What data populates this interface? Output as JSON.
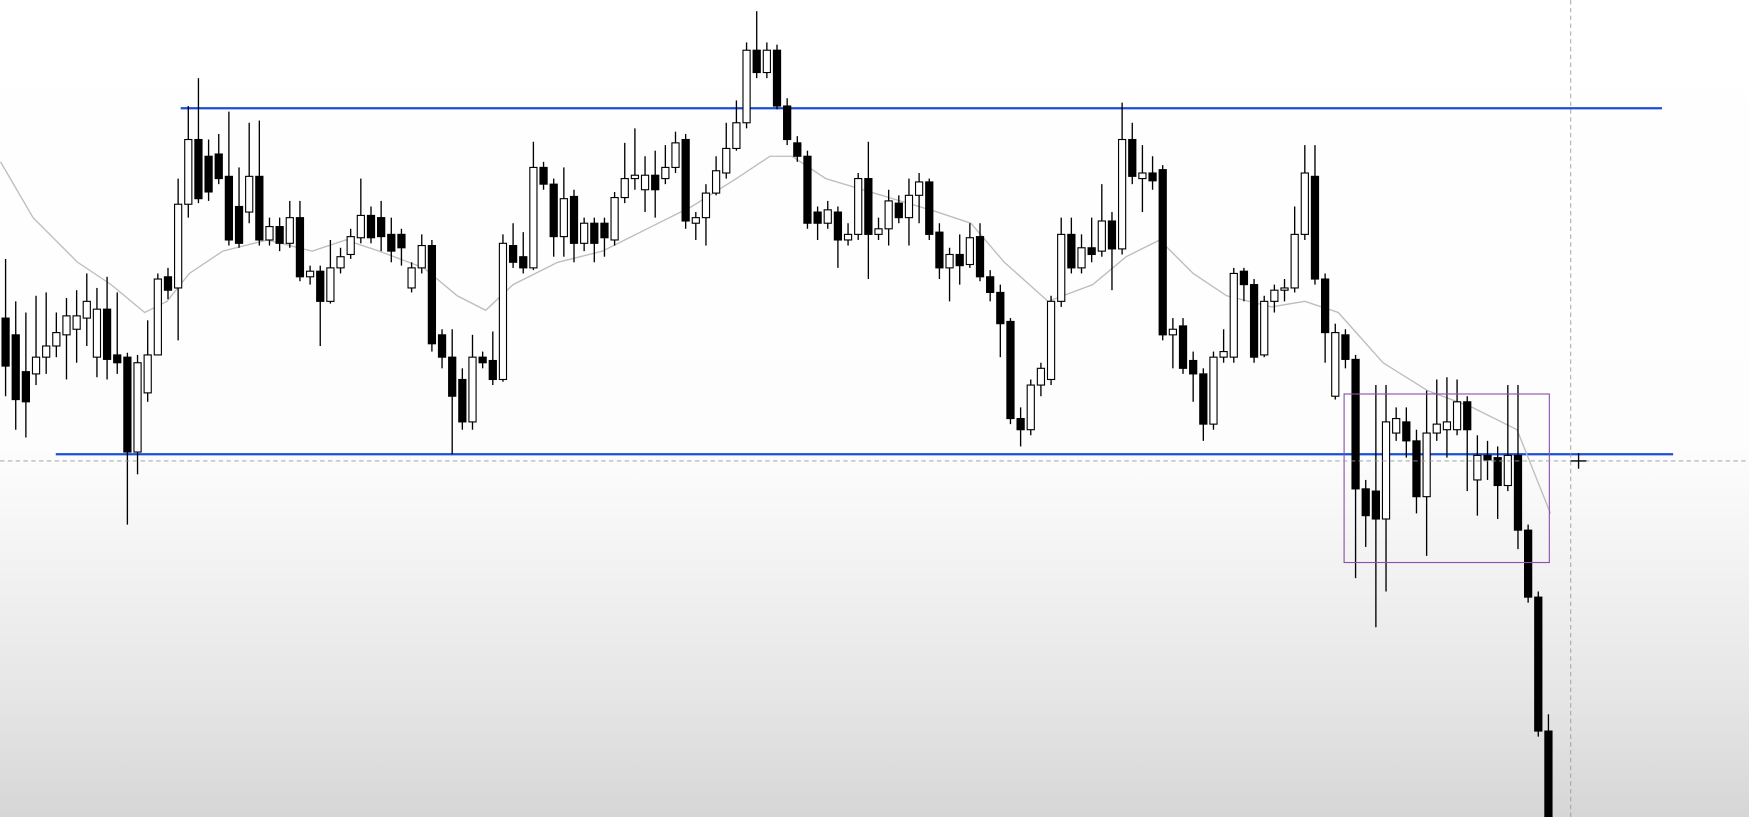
{
  "chart_data": {
    "type": "candlestick",
    "xlim": [
      -0.55,
      171.76
    ],
    "ylim": [
      0,
      732
    ],
    "up_color": "#ffffff",
    "down_color": "#000000",
    "wick_color": "#000000",
    "open": [
      447,
      432,
      399,
      397,
      412,
      422,
      432,
      437,
      447,
      412,
      455,
      414,
      412,
      327,
      380,
      414,
      484,
      474,
      549,
      607,
      592,
      594,
      574,
      547,
      542,
      574,
      517,
      529,
      514,
      537,
      484,
      489,
      462,
      492,
      504,
      519,
      539,
      537,
      522,
      522,
      474,
      492,
      512,
      432,
      412,
      392,
      354,
      412,
      409,
      392,
      512,
      502,
      492,
      582,
      567,
      520,
      556,
      514,
      532,
      532,
      517,
      555,
      572,
      562,
      575,
      572,
      582,
      607,
      532,
      537,
      559,
      577,
      599,
      622,
      687,
      667,
      687,
      637,
      604,
      592,
      542,
      532,
      542,
      517,
      522,
      572,
      522,
      527,
      550,
      537,
      557,
      569,
      524,
      492,
      504,
      495,
      520,
      484,
      470,
      444,
      357,
      347,
      387,
      392,
      462,
      522,
      492,
      510,
      507,
      534,
      509,
      607,
      572,
      577,
      580,
      432,
      440,
      409,
      397,
      352,
      412,
      412,
      489,
      477,
      414,
      462,
      472,
      474,
      522,
      574,
      482,
      377,
      432,
      410,
      294,
      292,
      267,
      344,
      354,
      337,
      287,
      344,
      347,
      347,
      372,
      302,
      324,
      322,
      297,
      324,
      257,
      197,
      77
    ],
    "high": [
      500,
      462,
      452,
      467,
      470,
      452,
      465,
      472,
      487,
      474,
      484,
      470,
      416,
      414,
      445,
      487,
      492,
      572,
      637,
      662,
      607,
      612,
      632,
      582,
      622,
      624,
      537,
      537,
      552,
      552,
      494,
      494,
      517,
      510,
      527,
      572,
      547,
      552,
      537,
      527,
      497,
      522,
      517,
      437,
      437,
      402,
      432,
      417,
      435,
      522,
      532,
      524,
      605,
      587,
      572,
      582,
      562,
      537,
      537,
      537,
      560,
      604,
      617,
      592,
      597,
      602,
      614,
      612,
      542,
      567,
      592,
      622,
      642,
      694,
      722,
      694,
      692,
      644,
      610,
      597,
      547,
      552,
      547,
      532,
      577,
      605,
      537,
      562,
      557,
      572,
      577,
      572,
      532,
      510,
      522,
      532,
      532,
      490,
      477,
      447,
      367,
      392,
      407,
      467,
      537,
      537,
      522,
      537,
      567,
      542,
      640,
      622,
      602,
      592,
      584,
      447,
      447,
      417,
      402,
      417,
      437,
      492,
      492,
      482,
      467,
      477,
      482,
      547,
      602,
      602,
      487,
      442,
      437,
      414,
      302,
      387,
      387,
      367,
      367,
      347,
      382,
      392,
      394,
      392,
      377,
      342,
      337,
      332,
      387,
      387,
      262,
      202,
      92
    ],
    "low": [
      377,
      347,
      340,
      387,
      397,
      412,
      392,
      407,
      422,
      394,
      392,
      397,
      262,
      307,
      372,
      414,
      464,
      427,
      537,
      550,
      552,
      567,
      512,
      510,
      532,
      512,
      512,
      507,
      510,
      480,
      477,
      422,
      460,
      487,
      500,
      514,
      514,
      507,
      497,
      494,
      470,
      487,
      417,
      402,
      325,
      347,
      347,
      402,
      387,
      390,
      492,
      487,
      490,
      562,
      502,
      502,
      497,
      507,
      497,
      502,
      512,
      550,
      562,
      542,
      537,
      567,
      577,
      527,
      517,
      512,
      557,
      572,
      597,
      617,
      662,
      662,
      634,
      602,
      587,
      527,
      517,
      527,
      492,
      512,
      517,
      482,
      517,
      512,
      532,
      512,
      532,
      517,
      482,
      462,
      477,
      492,
      480,
      462,
      412,
      352,
      332,
      342,
      377,
      387,
      457,
      487,
      487,
      497,
      502,
      472,
      504,
      567,
      542,
      562,
      427,
      402,
      397,
      372,
      337,
      347,
      407,
      407,
      462,
      407,
      412,
      452,
      462,
      470,
      517,
      477,
      407,
      374,
      402,
      214,
      242,
      170,
      202,
      337,
      322,
      272,
      234,
      337,
      322,
      342,
      292,
      270,
      302,
      267,
      292,
      240,
      192,
      72,
      0
    ],
    "close": [
      404,
      374,
      372,
      412,
      422,
      434,
      449,
      449,
      462,
      455,
      410,
      407,
      327,
      407,
      414,
      482,
      472,
      549,
      607,
      554,
      560,
      572,
      517,
      514,
      574,
      517,
      529,
      514,
      537,
      484,
      489,
      462,
      492,
      502,
      520,
      539,
      519,
      520,
      507,
      510,
      492,
      512,
      424,
      412,
      377,
      354,
      412,
      407,
      392,
      514,
      497,
      492,
      582,
      567,
      520,
      554,
      514,
      532,
      514,
      519,
      555,
      572,
      575,
      575,
      562,
      582,
      604,
      534,
      537,
      559,
      579,
      599,
      622,
      687,
      667,
      687,
      637,
      607,
      592,
      532,
      532,
      544,
      517,
      522,
      572,
      522,
      527,
      552,
      537,
      557,
      569,
      522,
      492,
      504,
      494,
      519,
      484,
      470,
      442,
      357,
      347,
      387,
      402,
      462,
      522,
      492,
      510,
      504,
      534,
      509,
      607,
      574,
      577,
      570,
      432,
      437,
      402,
      397,
      352,
      412,
      417,
      487,
      477,
      412,
      462,
      472,
      474,
      522,
      577,
      482,
      434,
      434,
      410,
      294,
      270,
      267,
      354,
      357,
      337,
      287,
      344,
      352,
      354,
      372,
      347,
      324,
      320,
      297,
      324,
      257,
      197,
      77,
      0
    ],
    "ma": {
      "color": "#bdbdbd",
      "x": [
        -0.5,
        2.7,
        7.1,
        10.4,
        13.7,
        15.9,
        18.1,
        21.4,
        25.8,
        30.2,
        33.5,
        36.8,
        41.2,
        44.5,
        47.3,
        50.0,
        54.4,
        58.8,
        63.2,
        67.6,
        72.0,
        75.3,
        77.5,
        80.8,
        86.3,
        91.8,
        95.1,
        98.4,
        102.7,
        107.1,
        110.4,
        113.7,
        117.0,
        120.3,
        124.7,
        128.0,
        131.3,
        135.7,
        140.1,
        144.5,
        148.9,
        152.2
      ],
      "values": [
        587,
        537,
        497,
        477,
        452,
        462,
        487,
        507,
        517,
        507,
        517,
        507,
        492,
        467,
        454,
        477,
        497,
        507,
        527,
        547,
        572,
        592,
        592,
        572,
        557,
        542,
        532,
        497,
        462,
        477,
        502,
        517,
        487,
        467,
        457,
        462,
        452,
        407,
        382,
        367,
        347,
        272
      ]
    },
    "levels": [
      635,
      325
    ],
    "level_color": "#1a4fd6",
    "zone": [
      228,
      379
    ],
    "zone_color": "#8e4fa6",
    "crosshair": {
      "x": 154.2,
      "y": 319
    }
  }
}
